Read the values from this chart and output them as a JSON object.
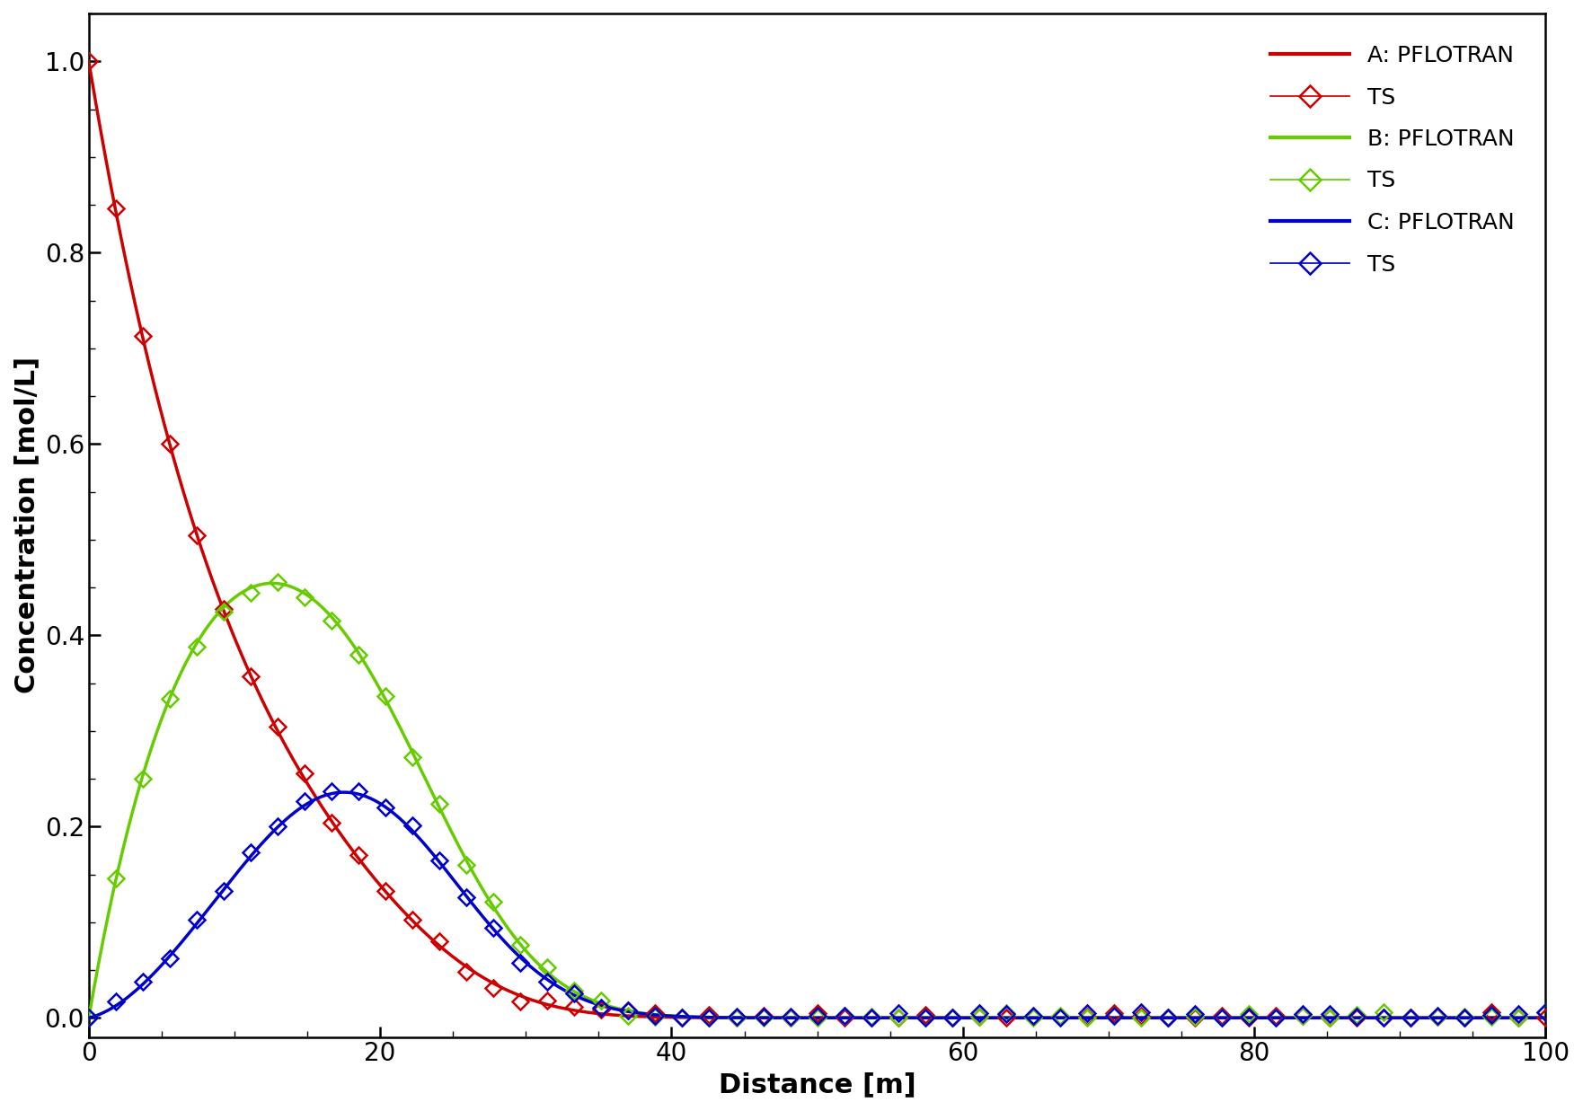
{
  "title": "",
  "xlabel": "Distance [m]",
  "ylabel": "Concentration [mol/L]",
  "xlim": [
    0,
    100
  ],
  "ylim": [
    -0.02,
    1.05
  ],
  "xticks": [
    0,
    20,
    40,
    60,
    80,
    100
  ],
  "yticks": [
    0.0,
    0.2,
    0.4,
    0.6,
    0.8,
    1.0
  ],
  "colors": {
    "A": "#cc0000",
    "B": "#66cc00",
    "C": "#0000cc"
  },
  "background_color": "#ffffff",
  "axes_linewidth": 1.8,
  "line_linewidth": 2.5,
  "marker_size": 9,
  "fontsize_labels": 22,
  "fontsize_ticks": 20,
  "fontsize_legend": 18,
  "n_points_smooth": 600,
  "n_points_markers": 55
}
